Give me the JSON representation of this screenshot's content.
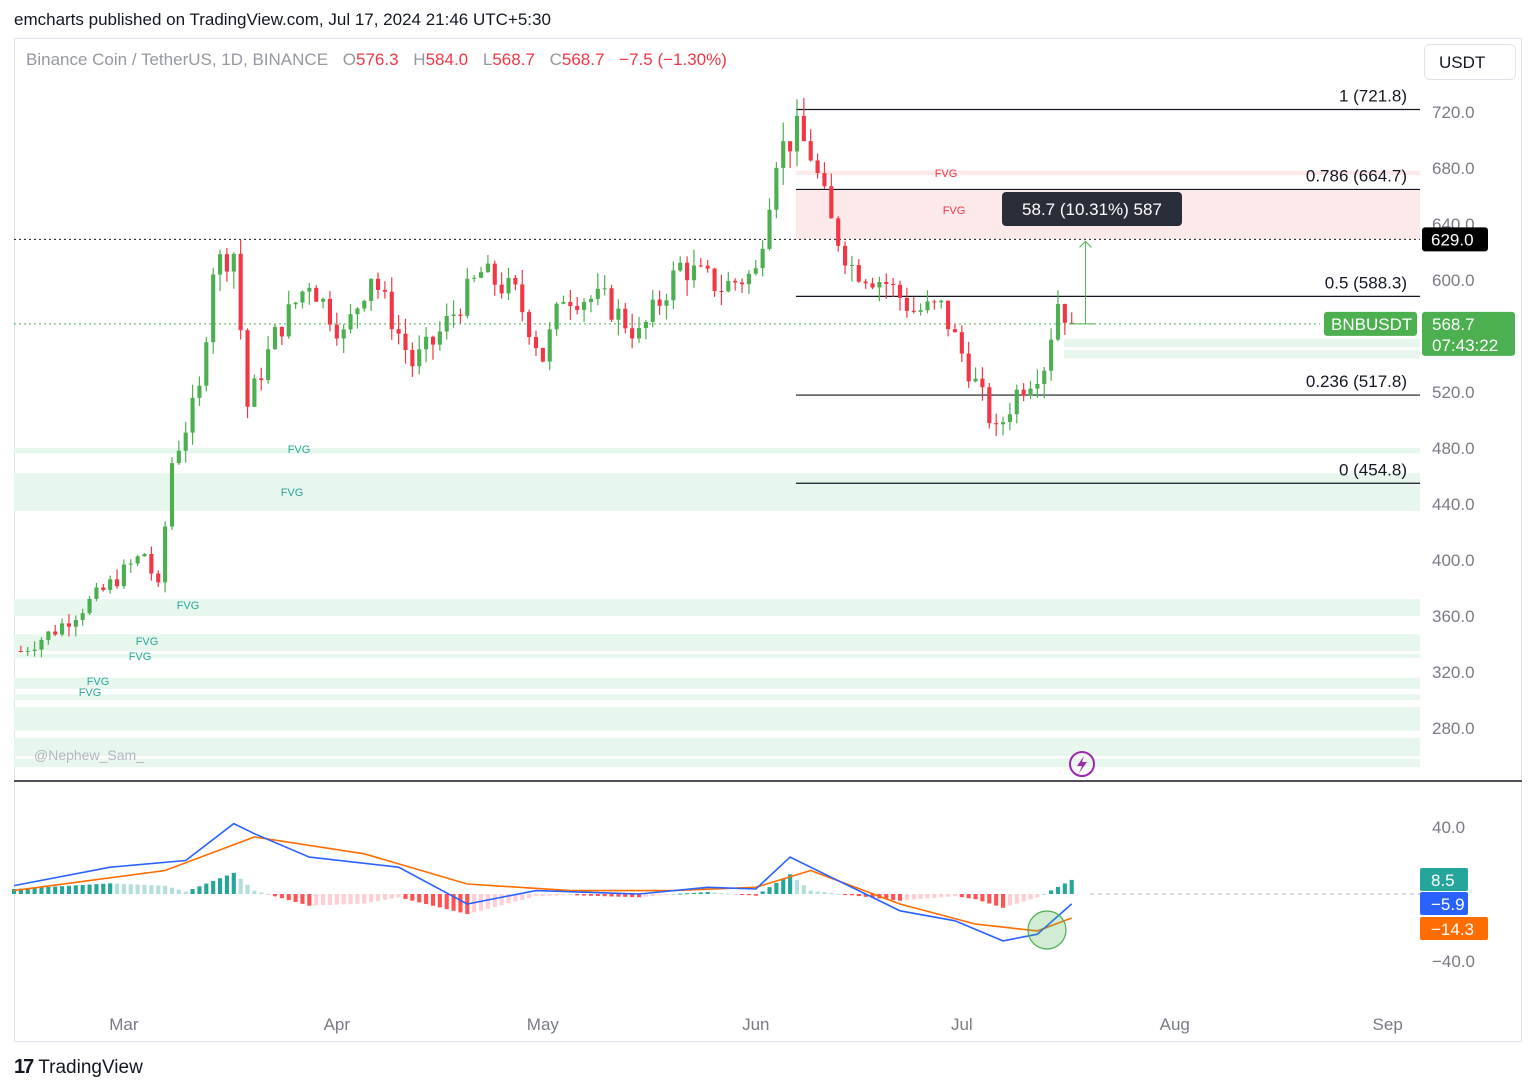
{
  "publisher_line": "emcharts published on TradingView.com, Jul 17, 2024 21:46 UTC+5:30",
  "header": {
    "symbol": "Binance Coin / TetherUS, 1D, BINANCE",
    "open_label": "O",
    "open": "576.3",
    "high_label": "H",
    "high": "584.0",
    "low_label": "L",
    "low": "568.7",
    "close_label": "C",
    "close": "568.7",
    "change": "−7.5 (−1.30%)"
  },
  "currency_button": "USDT",
  "footer": {
    "brand": "TradingView",
    "logo_glyph": "17"
  },
  "chart_data": [
    {
      "type": "candlestick",
      "title": "Binance Coin / TetherUS, 1D, BINANCE",
      "y_ticks": [
        "720.0",
        "680.0",
        "640.0",
        "600.0",
        "520.0",
        "480.0",
        "440.0",
        "400.0",
        "360.0",
        "320.0",
        "280.0"
      ],
      "x_ticks": [
        "Mar",
        "Apr",
        "May",
        "Jun",
        "Jul",
        "Aug",
        "Sep"
      ],
      "ylim": [
        252,
        733
      ],
      "x_range": [
        "2024-02-14",
        "2024-09-06"
      ],
      "close_path": [
        [
          "2024-02-15",
          335
        ],
        [
          "2024-02-20",
          350
        ],
        [
          "2024-02-27",
          378
        ],
        [
          "2024-03-04",
          405
        ],
        [
          "2024-03-06",
          378
        ],
        [
          "2024-03-08",
          470
        ],
        [
          "2024-03-12",
          520
        ],
        [
          "2024-03-14",
          610
        ],
        [
          "2024-03-17",
          620
        ],
        [
          "2024-03-19",
          510
        ],
        [
          "2024-03-23",
          560
        ],
        [
          "2024-03-28",
          600
        ],
        [
          "2024-04-02",
          560
        ],
        [
          "2024-04-06",
          605
        ],
        [
          "2024-04-12",
          540
        ],
        [
          "2024-04-15",
          555
        ],
        [
          "2024-04-22",
          605
        ],
        [
          "2024-04-27",
          590
        ],
        [
          "2024-05-01",
          545
        ],
        [
          "2024-05-04",
          590
        ],
        [
          "2024-05-10",
          585
        ],
        [
          "2024-05-15",
          560
        ],
        [
          "2024-05-21",
          610
        ],
        [
          "2024-05-27",
          595
        ],
        [
          "2024-06-01",
          605
        ],
        [
          "2024-06-04",
          690
        ],
        [
          "2024-06-07",
          705
        ],
        [
          "2024-06-09",
          690
        ],
        [
          "2024-06-12",
          640
        ],
        [
          "2024-06-15",
          610
        ],
        [
          "2024-06-20",
          598
        ],
        [
          "2024-06-24",
          578
        ],
        [
          "2024-06-28",
          580
        ],
        [
          "2024-07-04",
          515
        ],
        [
          "2024-07-06",
          490
        ],
        [
          "2024-07-09",
          520
        ],
        [
          "2024-07-13",
          540
        ],
        [
          "2024-07-15",
          585
        ],
        [
          "2024-07-17",
          568.7
        ]
      ],
      "fib_levels": [
        {
          "label": "1 (721.8)",
          "value": 721.8
        },
        {
          "label": "0.786 (664.7)",
          "value": 664.7
        },
        {
          "label": "0.5 (588.3)",
          "value": 588.3
        },
        {
          "label": "0.236 (517.8)",
          "value": 517.8
        },
        {
          "label": "0 (454.8)",
          "value": 454.8
        }
      ],
      "fvg_zones": [
        {
          "label": "FVG",
          "kind": "bearish",
          "from": 675,
          "to": 678
        },
        {
          "label": "FVG",
          "kind": "bearish",
          "from": 629,
          "to": 665
        },
        {
          "label": "FVG",
          "kind": "bullish",
          "from": 476,
          "to": 480
        },
        {
          "label": "FVG",
          "kind": "bullish",
          "from": 435,
          "to": 462
        },
        {
          "label": "FVG",
          "kind": "bullish",
          "from": 360,
          "to": 372
        },
        {
          "label": "FVG",
          "kind": "bullish",
          "from": 335,
          "to": 347
        },
        {
          "label": "FVG",
          "kind": "bullish",
          "from": 330,
          "to": 333
        },
        {
          "label": "FVG",
          "kind": "bullish",
          "from": 308,
          "to": 316
        },
        {
          "label": "FVG",
          "kind": "bullish",
          "from": 300,
          "to": 304
        },
        {
          "label": "",
          "kind": "bullish",
          "from": 278,
          "to": 295
        },
        {
          "label": "",
          "kind": "bullish",
          "from": 260,
          "to": 273
        },
        {
          "label": "",
          "kind": "bullish",
          "from": 252,
          "to": 258
        },
        {
          "label": "",
          "kind": "bullish",
          "from": 544,
          "to": 550
        },
        {
          "label": "",
          "kind": "bullish",
          "from": 552,
          "to": 558
        }
      ],
      "horizontal_line": {
        "label": "629.0",
        "value": 629.0
      },
      "measure_tooltip": "58.7 (10.31%) 587",
      "current_price": {
        "symbol": "BNBUSDT",
        "price": "568.7",
        "countdown": "07:43:22",
        "value": 568.7
      },
      "watermark": "@Nephew_Sam_",
      "colors": {
        "up": "#26a69a",
        "up_candle": "#4caf50",
        "down": "#f23645",
        "fvg_bull": "#e8f7ee",
        "fvg_bear": "#fde8ea"
      }
    },
    {
      "type": "macd",
      "y_ticks": [
        "40.0",
        "−40.0"
      ],
      "ylim": [
        -62,
        62
      ],
      "values": {
        "histogram": "8.5",
        "macd": "−5.9",
        "signal": "−14.3"
      },
      "macd_path": [
        [
          "2024-02-14",
          5
        ],
        [
          "2024-02-28",
          16
        ],
        [
          "2024-03-10",
          20
        ],
        [
          "2024-03-17",
          42
        ],
        [
          "2024-03-20",
          36
        ],
        [
          "2024-03-28",
          22
        ],
        [
          "2024-04-10",
          16
        ],
        [
          "2024-04-20",
          -6
        ],
        [
          "2024-04-30",
          2
        ],
        [
          "2024-05-15",
          0
        ],
        [
          "2024-05-25",
          4
        ],
        [
          "2024-06-01",
          3
        ],
        [
          "2024-06-06",
          22
        ],
        [
          "2024-06-12",
          10
        ],
        [
          "2024-06-22",
          -10
        ],
        [
          "2024-06-30",
          -16
        ],
        [
          "2024-07-07",
          -28
        ],
        [
          "2024-07-12",
          -24
        ],
        [
          "2024-07-17",
          -5.9
        ]
      ],
      "signal_path": [
        [
          "2024-02-14",
          2
        ],
        [
          "2024-03-07",
          14
        ],
        [
          "2024-03-20",
          34
        ],
        [
          "2024-04-05",
          24
        ],
        [
          "2024-04-20",
          6
        ],
        [
          "2024-05-05",
          2
        ],
        [
          "2024-05-20",
          2
        ],
        [
          "2024-06-01",
          4
        ],
        [
          "2024-06-09",
          14
        ],
        [
          "2024-06-22",
          -6
        ],
        [
          "2024-07-03",
          -18
        ],
        [
          "2024-07-12",
          -22
        ],
        [
          "2024-07-17",
          -14.3
        ]
      ],
      "colors": {
        "macd": "#2962ff",
        "signal": "#ff6d00",
        "hist_up": "#26a69a",
        "hist_up_light": "#b2dfdb",
        "hist_down": "#ff5252",
        "hist_down_light": "#ffcdd2"
      }
    }
  ]
}
